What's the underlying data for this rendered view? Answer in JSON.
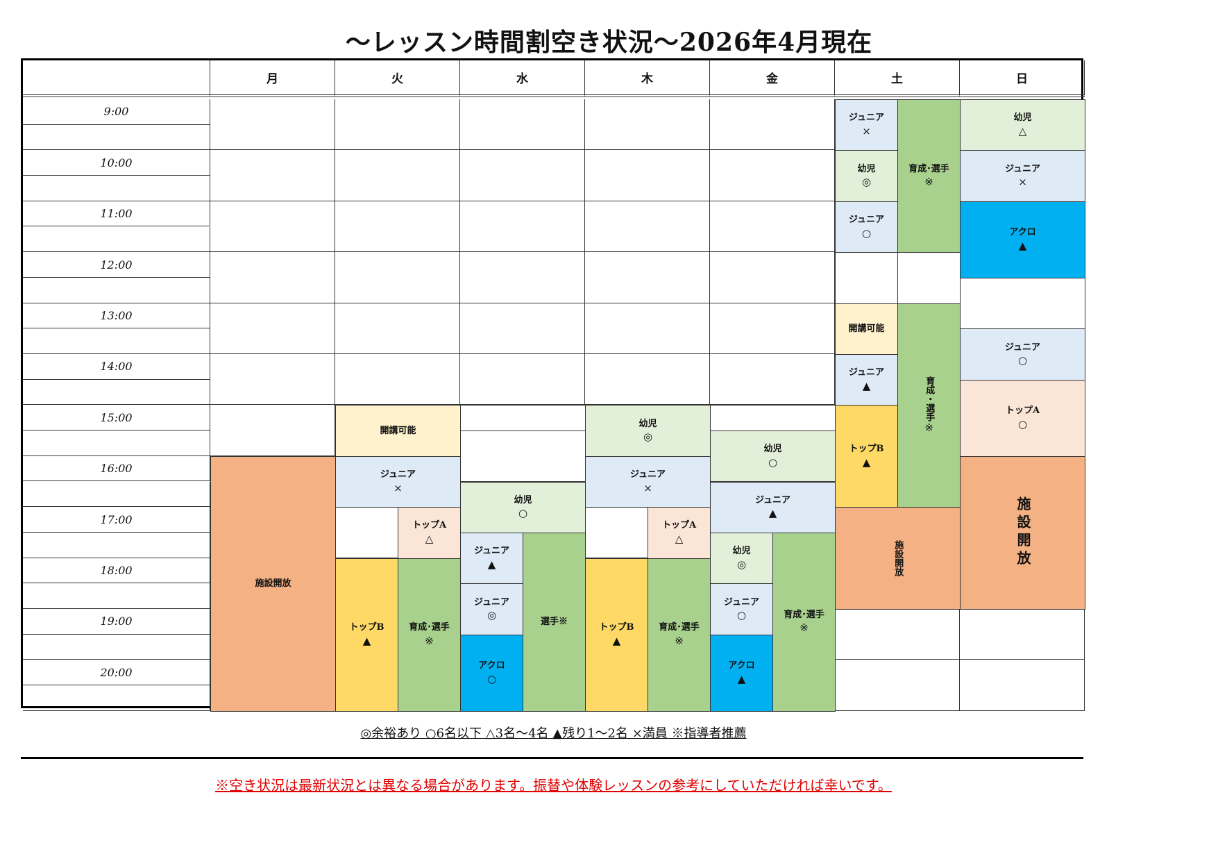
{
  "title": "～レッスン時間割空き状況～2026年4月現在",
  "days": [
    "月",
    "火",
    "水",
    "木",
    "金",
    "土",
    "日"
  ],
  "times": [
    "9:00",
    "10:00",
    "11:00",
    "12:00",
    "13:00",
    "14:00",
    "15:00",
    "16:00",
    "17:00",
    "18:00",
    "19:00",
    "20:00"
  ],
  "colors": {
    "facility": "#f4b183",
    "open": "#fff2cc",
    "junior": "#deebf7",
    "kids": "#e2f0d9",
    "athlete": "#a9d18e",
    "topB": "#ffd966",
    "topA": "#fbe5d6",
    "acro": "#00b0f0",
    "empty": "#ffffff"
  },
  "blocks": [
    {
      "day": 0,
      "lane": "full",
      "start": "16:00",
      "end": "21:00",
      "label": "施設開放",
      "mark": "",
      "kind": "facility"
    },
    {
      "day": 1,
      "lane": "full",
      "start": "15:00",
      "end": "16:00",
      "label": "開講可能",
      "mark": "",
      "kind": "open"
    },
    {
      "day": 1,
      "lane": "full",
      "start": "16:00",
      "end": "17:00",
      "label": "ジュニア",
      "mark": "×",
      "kind": "junior"
    },
    {
      "day": 1,
      "lane": "left",
      "start": "18:00",
      "end": "21:00",
      "label": "トップB",
      "mark": "▲",
      "kind": "topB"
    },
    {
      "day": 1,
      "lane": "right",
      "start": "17:00",
      "end": "18:00",
      "label": "トップA",
      "mark": "△",
      "kind": "topA"
    },
    {
      "day": 1,
      "lane": "right",
      "start": "18:00",
      "end": "21:00",
      "label": "育成･選手",
      "mark": "※",
      "kind": "athlete"
    },
    {
      "day": 2,
      "lane": "full",
      "start": "15:00",
      "end": "15:30",
      "label": "",
      "mark": "",
      "kind": "empty"
    },
    {
      "day": 2,
      "lane": "full",
      "start": "15:30",
      "end": "16:30",
      "label": "",
      "mark": "",
      "kind": "empty"
    },
    {
      "day": 2,
      "lane": "full",
      "start": "16:30",
      "end": "17:30",
      "label": "幼児",
      "mark": "○",
      "kind": "kids"
    },
    {
      "day": 2,
      "lane": "left",
      "start": "17:30",
      "end": "18:30",
      "label": "ジュニア",
      "mark": "▲",
      "kind": "junior"
    },
    {
      "day": 2,
      "lane": "left",
      "start": "18:30",
      "end": "19:30",
      "label": "ジュニア",
      "mark": "◎",
      "kind": "junior"
    },
    {
      "day": 2,
      "lane": "left",
      "start": "19:30",
      "end": "21:00",
      "label": "アクロ",
      "mark": "○",
      "kind": "acro"
    },
    {
      "day": 2,
      "lane": "right",
      "start": "17:30",
      "end": "21:00",
      "label": "選手※",
      "mark": "",
      "kind": "athlete"
    },
    {
      "day": 3,
      "lane": "full",
      "start": "15:00",
      "end": "16:00",
      "label": "幼児",
      "mark": "◎",
      "kind": "kids"
    },
    {
      "day": 3,
      "lane": "full",
      "start": "16:00",
      "end": "17:00",
      "label": "ジュニア",
      "mark": "×",
      "kind": "junior"
    },
    {
      "day": 3,
      "lane": "left",
      "start": "18:00",
      "end": "21:00",
      "label": "トップB",
      "mark": "▲",
      "kind": "topB"
    },
    {
      "day": 3,
      "lane": "right",
      "start": "17:00",
      "end": "18:00",
      "label": "トップA",
      "mark": "△",
      "kind": "topA"
    },
    {
      "day": 3,
      "lane": "right",
      "start": "18:00",
      "end": "21:00",
      "label": "育成･選手",
      "mark": "※",
      "kind": "athlete"
    },
    {
      "day": 4,
      "lane": "full",
      "start": "15:00",
      "end": "15:30",
      "label": "",
      "mark": "",
      "kind": "empty"
    },
    {
      "day": 4,
      "lane": "full",
      "start": "15:30",
      "end": "16:30",
      "label": "幼児",
      "mark": "○",
      "kind": "kids"
    },
    {
      "day": 4,
      "lane": "full",
      "start": "16:30",
      "end": "17:30",
      "label": "ジュニア",
      "mark": "▲",
      "kind": "junior"
    },
    {
      "day": 4,
      "lane": "left",
      "start": "17:30",
      "end": "18:30",
      "label": "幼児",
      "mark": "◎",
      "kind": "kids"
    },
    {
      "day": 4,
      "lane": "left",
      "start": "18:30",
      "end": "19:30",
      "label": "ジュニア",
      "mark": "○",
      "kind": "junior"
    },
    {
      "day": 4,
      "lane": "left",
      "start": "19:30",
      "end": "21:00",
      "label": "アクロ",
      "mark": "▲",
      "kind": "acro"
    },
    {
      "day": 4,
      "lane": "right",
      "start": "17:30",
      "end": "21:00",
      "label": "育成･選手",
      "mark": "※",
      "kind": "athlete"
    },
    {
      "day": 5,
      "lane": "left",
      "start": "9:00",
      "end": "10:00",
      "label": "ジュニア",
      "mark": "×",
      "kind": "junior"
    },
    {
      "day": 5,
      "lane": "left",
      "start": "10:00",
      "end": "11:00",
      "label": "幼児",
      "mark": "◎",
      "kind": "kids"
    },
    {
      "day": 5,
      "lane": "left",
      "start": "11:00",
      "end": "12:00",
      "label": "ジュニア",
      "mark": "○",
      "kind": "junior"
    },
    {
      "day": 5,
      "lane": "right",
      "start": "9:00",
      "end": "12:00",
      "label": "育成･選手",
      "mark": "※",
      "kind": "athlete"
    },
    {
      "day": 5,
      "lane": "left",
      "start": "12:00",
      "end": "13:00",
      "label": "",
      "mark": "",
      "kind": "empty"
    },
    {
      "day": 5,
      "lane": "right",
      "start": "12:00",
      "end": "13:00",
      "label": "",
      "mark": "",
      "kind": "empty"
    },
    {
      "day": 5,
      "lane": "left",
      "start": "13:00",
      "end": "14:00",
      "label": "開講可能",
      "mark": "",
      "kind": "open"
    },
    {
      "day": 5,
      "lane": "left",
      "start": "14:00",
      "end": "15:00",
      "label": "ジュニア",
      "mark": "▲",
      "kind": "junior"
    },
    {
      "day": 5,
      "lane": "left",
      "start": "15:00",
      "end": "17:00",
      "label": "トップB",
      "mark": "▲",
      "kind": "topB"
    },
    {
      "day": 5,
      "lane": "right",
      "start": "13:00",
      "end": "17:00",
      "label": "育成・選手",
      "mark": "※",
      "kind": "athlete",
      "vertical": true
    },
    {
      "day": 5,
      "lane": "full",
      "start": "17:00",
      "end": "19:00",
      "label": "施設開放",
      "mark": "",
      "kind": "facility",
      "vertical": true
    },
    {
      "day": 6,
      "lane": "full",
      "start": "9:00",
      "end": "10:00",
      "label": "幼児",
      "mark": "△",
      "kind": "kids"
    },
    {
      "day": 6,
      "lane": "full",
      "start": "10:00",
      "end": "11:00",
      "label": "ジュニア",
      "mark": "×",
      "kind": "junior"
    },
    {
      "day": 6,
      "lane": "full",
      "start": "11:00",
      "end": "12:30",
      "label": "アクロ",
      "mark": "▲",
      "kind": "acro"
    },
    {
      "day": 6,
      "lane": "full",
      "start": "12:30",
      "end": "13:30",
      "label": "",
      "mark": "",
      "kind": "empty"
    },
    {
      "day": 6,
      "lane": "full",
      "start": "13:30",
      "end": "14:30",
      "label": "ジュニア",
      "mark": "○",
      "kind": "junior"
    },
    {
      "day": 6,
      "lane": "full",
      "start": "14:30",
      "end": "16:00",
      "label": "トップA",
      "mark": "○",
      "kind": "topA"
    },
    {
      "day": 6,
      "lane": "full",
      "start": "16:00",
      "end": "19:00",
      "label": "施設開放",
      "mark": "",
      "kind": "facility",
      "vertical": true,
      "large": true
    }
  ],
  "legend": "◎余裕あり  ○6名以下  △3名～4名  ▲残り1～2名  ×満員  ※指導者推薦",
  "note": "※空き状況は最新状況とは異なる場合があります。振替や体験レッスンの参考にしていただければ幸いです。"
}
